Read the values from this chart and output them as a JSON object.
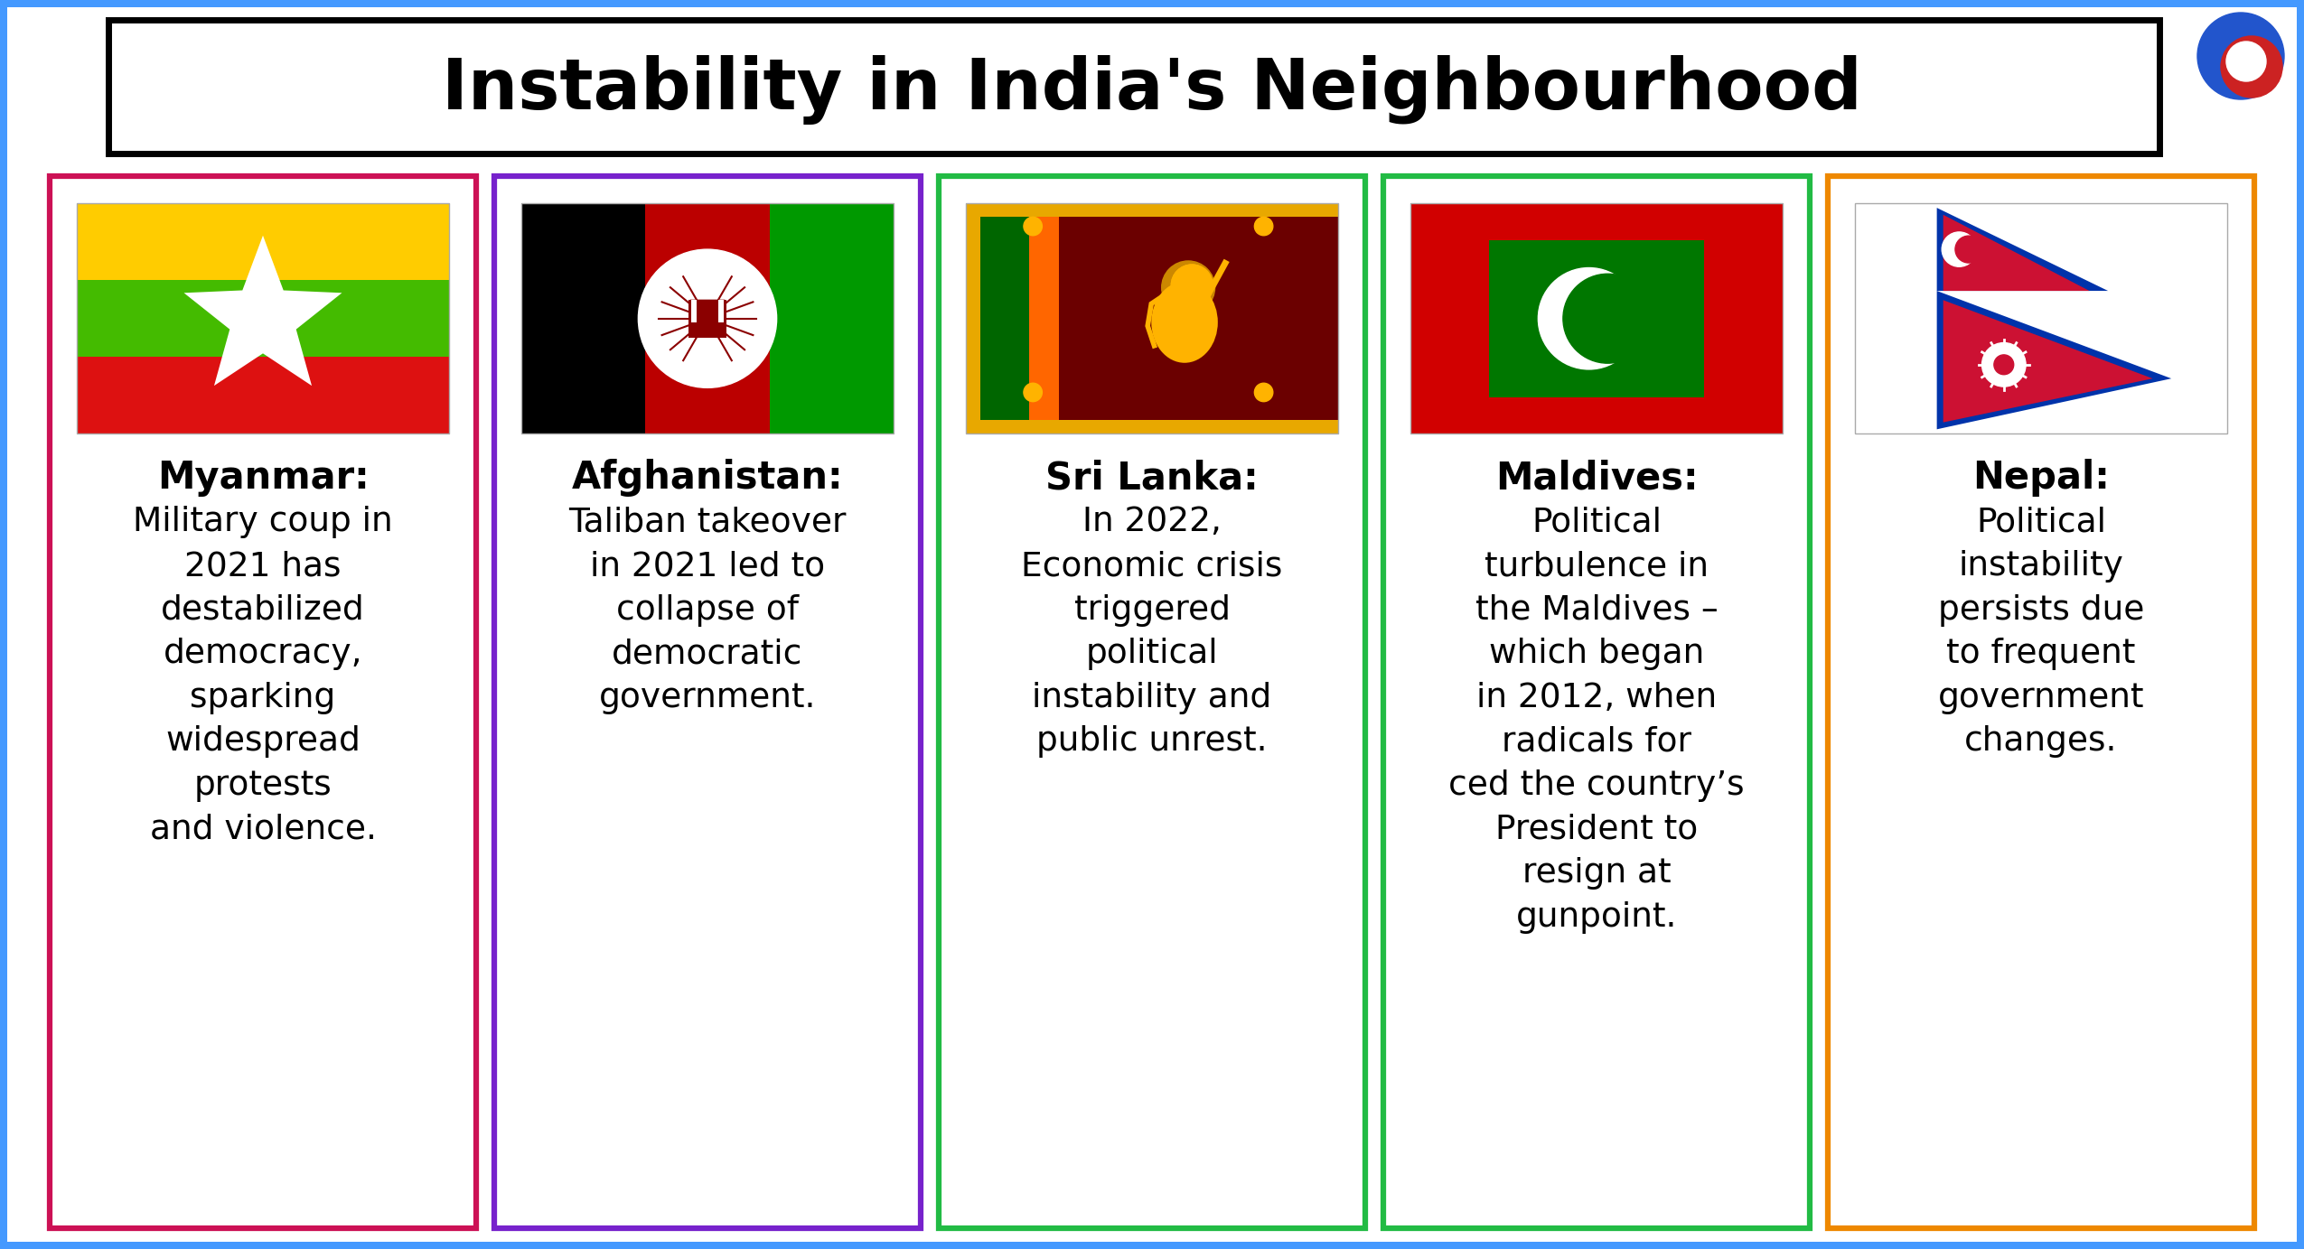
{
  "title": "Instability in India's Neighbourhood",
  "title_fontsize": 56,
  "bg_color": "#FFFFFF",
  "outer_border_color": "#4499FF",
  "top_bar_color": "#4499FF",
  "cards": [
    {
      "country": "Myanmar",
      "border_color": "#CC1155",
      "text": "Military coup in\n2021 has\ndestabilized\ndemocracy,\nsparking\nwidespread\nprotests\nand violence.",
      "flag_type": "myanmar"
    },
    {
      "country": "Afghanistan",
      "border_color": "#7722CC",
      "text": "Taliban takeover\nin 2021 led to\ncollapse of\ndemocratic\ngovernment.",
      "flag_type": "afghanistan"
    },
    {
      "country": "Sri Lanka",
      "border_color": "#22BB44",
      "text": "In 2022,\nEconomic crisis\ntriggered\npolitical\ninstability and\npublic unrest.",
      "flag_type": "srilanka"
    },
    {
      "country": "Maldives",
      "border_color": "#22BB44",
      "text": "Political\nturbulence in\nthe Maldives –\nwhich began\nin 2012, when\nradicals for\nced the country’s\nPresident to\nresign at\ngunpoint.",
      "flag_type": "maldives"
    },
    {
      "country": "Nepal",
      "border_color": "#EE8800",
      "text": "Political\ninstability\npersists due\nto frequent\ngovernment\nchanges.",
      "flag_type": "nepal"
    }
  ]
}
